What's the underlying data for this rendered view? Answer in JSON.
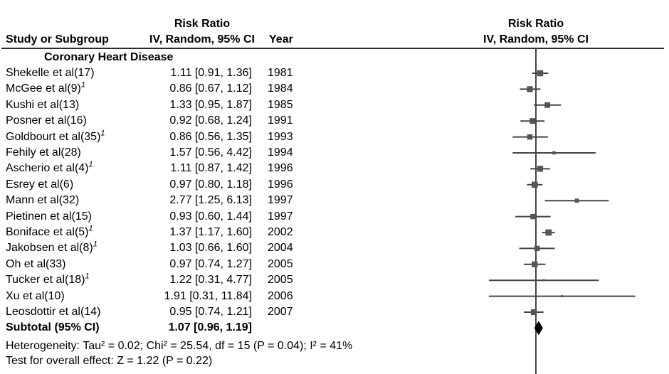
{
  "header": {
    "study_col": "Study or Subgroup",
    "left_effect_title_line1": "Risk Ratio",
    "left_effect_title_line2": "IV, Random, 95% CI",
    "year_col": "Year",
    "right_plot_title_line1": "Risk Ratio",
    "right_plot_title_line2": "IV, Random, 95% CI"
  },
  "colors": {
    "background": "#ffffff",
    "text": "#000000",
    "line": "#454545",
    "marker": "#555555",
    "diamond": "#000000",
    "rule": "#2b2b2b"
  },
  "chart_data": {
    "type": "forest",
    "effect_measure": "Risk Ratio",
    "model": "IV, Random, 95% CI",
    "x_scale": "log",
    "null_line_value": 1,
    "subgroup": "Coronary Heart Disease",
    "studies": [
      {
        "name": "Shekelle et al(17)",
        "sup": null,
        "rr": 1.11,
        "lo": 0.91,
        "hi": 1.36,
        "ci_text": "1.11 [0.91, 1.36]",
        "year": "1981"
      },
      {
        "name": "McGee et al(9)",
        "sup": "1",
        "rr": 0.86,
        "lo": 0.67,
        "hi": 1.12,
        "ci_text": "0.86 [0.67, 1.12]",
        "year": "1984"
      },
      {
        "name": "Kushi et al(13)",
        "sup": null,
        "rr": 1.33,
        "lo": 0.95,
        "hi": 1.87,
        "ci_text": "1.33 [0.95, 1.87]",
        "year": "1985"
      },
      {
        "name": "Posner et al(16)",
        "sup": null,
        "rr": 0.92,
        "lo": 0.68,
        "hi": 1.24,
        "ci_text": "0.92 [0.68, 1.24]",
        "year": "1991"
      },
      {
        "name": "Goldbourt et al(35)",
        "sup": "1",
        "rr": 0.86,
        "lo": 0.56,
        "hi": 1.35,
        "ci_text": "0.86 [0.56, 1.35]",
        "year": "1993"
      },
      {
        "name": "Fehily et al(28)",
        "sup": null,
        "rr": 1.57,
        "lo": 0.56,
        "hi": 4.42,
        "ci_text": "1.57 [0.56, 4.42]",
        "year": "1994"
      },
      {
        "name": "Ascherio et al(4)",
        "sup": "1",
        "rr": 1.11,
        "lo": 0.87,
        "hi": 1.42,
        "ci_text": "1.11 [0.87, 1.42]",
        "year": "1996"
      },
      {
        "name": "Esrey et al(6)",
        "sup": null,
        "rr": 0.97,
        "lo": 0.8,
        "hi": 1.18,
        "ci_text": "0.97 [0.80, 1.18]",
        "year": "1996"
      },
      {
        "name": "Mann et al(32)",
        "sup": null,
        "rr": 2.77,
        "lo": 1.25,
        "hi": 6.13,
        "ci_text": "2.77 [1.25, 6.13]",
        "year": "1997"
      },
      {
        "name": "Pietinen et al(15)",
        "sup": null,
        "rr": 0.93,
        "lo": 0.6,
        "hi": 1.44,
        "ci_text": "0.93 [0.60, 1.44]",
        "year": "1997"
      },
      {
        "name": "Boniface et al(5)",
        "sup": "1",
        "rr": 1.37,
        "lo": 1.17,
        "hi": 1.6,
        "ci_text": "1.37 [1.17, 1.60]",
        "year": "2002"
      },
      {
        "name": "Jakobsen et al(8)",
        "sup": "1",
        "rr": 1.03,
        "lo": 0.66,
        "hi": 1.6,
        "ci_text": "1.03 [0.66, 1.60]",
        "year": "2004"
      },
      {
        "name": "Oh et al(33)",
        "sup": null,
        "rr": 0.97,
        "lo": 0.74,
        "hi": 1.27,
        "ci_text": "0.97 [0.74, 1.27]",
        "year": "2005"
      },
      {
        "name": "Tucker et al(18)",
        "sup": "1",
        "rr": 1.22,
        "lo": 0.31,
        "hi": 4.77,
        "ci_text": "1.22 [0.31, 4.77]",
        "year": "2005"
      },
      {
        "name": "Xu et al(10)",
        "sup": null,
        "rr": 1.91,
        "lo": 0.31,
        "hi": 11.84,
        "ci_text": "1.91 [0.31, 11.84]",
        "year": "2006"
      },
      {
        "name": "Leosdottir et al(14)",
        "sup": null,
        "rr": 0.95,
        "lo": 0.74,
        "hi": 1.21,
        "ci_text": "0.95 [0.74, 1.21]",
        "year": "2007"
      }
    ],
    "subtotal": {
      "label": "Subtotal (95% CI)",
      "rr": 1.07,
      "lo": 0.96,
      "hi": 1.19,
      "ci_text": "1.07 [0.96, 1.19]"
    },
    "heterogeneity": "Heterogeneity: Tau² = 0.02; Chi² = 25.54, df = 15 (P = 0.04); I² = 41%",
    "overall_effect": "Test for overall effect: Z = 1.22 (P = 0.22)"
  }
}
